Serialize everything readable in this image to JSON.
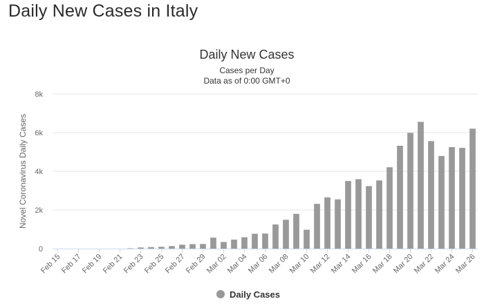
{
  "page": {
    "heading": "Daily New Cases in Italy"
  },
  "chart_data": {
    "type": "bar",
    "title": "Daily New Cases",
    "subtitle": [
      "Cases per Day",
      "Data as of 0:00 GMT+0"
    ],
    "ylabel": "Novel Coronavirus Daily Cases",
    "xlabel": "",
    "ylim": [
      0,
      8000
    ],
    "yticks": [
      0,
      2000,
      4000,
      6000,
      8000
    ],
    "ytick_labels": [
      "0",
      "2k",
      "4k",
      "6k",
      "8k"
    ],
    "grid": true,
    "legend": {
      "position": "bottom-center"
    },
    "bar_color": "#999999",
    "categories": [
      "Feb 15",
      "Feb 16",
      "Feb 17",
      "Feb 18",
      "Feb 19",
      "Feb 20",
      "Feb 21",
      "Feb 22",
      "Feb 23",
      "Feb 24",
      "Feb 25",
      "Feb 26",
      "Feb 27",
      "Feb 28",
      "Feb 29",
      "Mar 01",
      "Mar 02",
      "Mar 03",
      "Mar 04",
      "Mar 05",
      "Mar 06",
      "Mar 07",
      "Mar 08",
      "Mar 09",
      "Mar 10",
      "Mar 11",
      "Mar 12",
      "Mar 13",
      "Mar 14",
      "Mar 15",
      "Mar 16",
      "Mar 17",
      "Mar 18",
      "Mar 19",
      "Mar 20",
      "Mar 21",
      "Mar 22",
      "Mar 23",
      "Mar 24",
      "Mar 25",
      "Mar 26"
    ],
    "tick_labels": [
      "Feb 15",
      "Feb 17",
      "Feb 19",
      "Feb 21",
      "Feb 23",
      "Feb 25",
      "Feb 27",
      "Feb 29",
      "Mar 02",
      "Mar 04",
      "Mar 06",
      "Mar 08",
      "Mar 10",
      "Mar 12",
      "Mar 14",
      "Mar 16",
      "Mar 18",
      "Mar 20",
      "Mar 22",
      "Mar 24",
      "Mar 26"
    ],
    "series": [
      {
        "name": "Daily Cases",
        "values": [
          0,
          0,
          0,
          0,
          0,
          0,
          0,
          17,
          58,
          78,
          93,
          131,
          202,
          233,
          240,
          566,
          342,
          466,
          587,
          769,
          778,
          1247,
          1492,
          1797,
          977,
          2313,
          2651,
          2547,
          3497,
          3590,
          3233,
          3526,
          4207,
          5322,
          5986,
          6557,
          5560,
          4789,
          5249,
          5210,
          6203
        ]
      }
    ]
  }
}
